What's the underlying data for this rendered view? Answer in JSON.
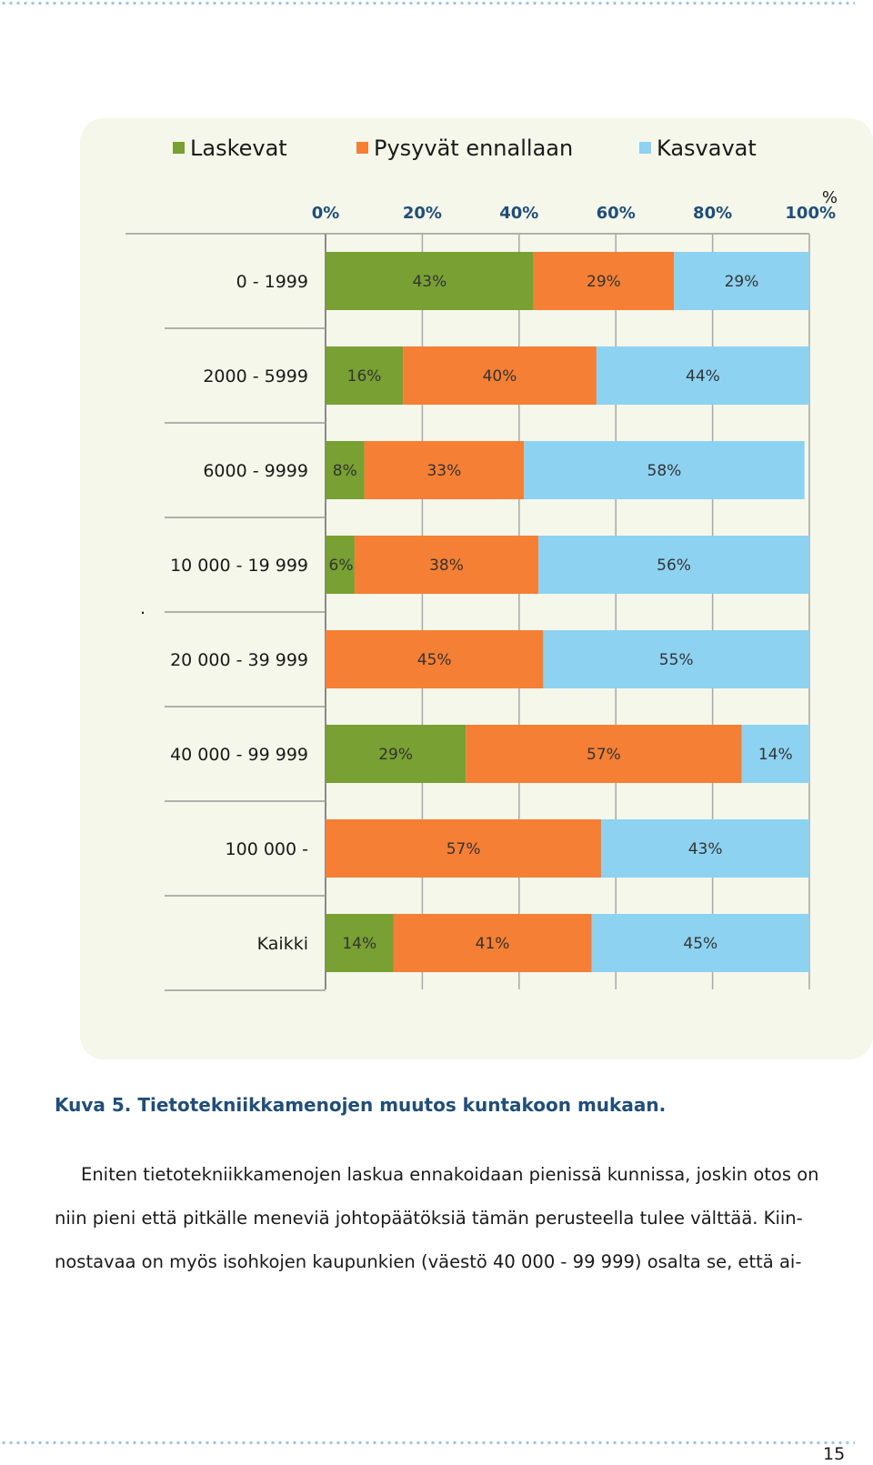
{
  "chart_data": {
    "type": "bar",
    "orientation": "horizontal",
    "stacked": true,
    "categories": [
      "0 - 1999",
      "2000 - 5999",
      "6000 - 9999",
      "10 000 - 19 999",
      "20 000 - 39 999",
      "40 000 - 99 999",
      "100 000 -",
      "Kaikki"
    ],
    "series": [
      {
        "name": "Laskevat",
        "color": "#78a032",
        "values": [
          43,
          16,
          8,
          6,
          0,
          29,
          0,
          14
        ],
        "labels": [
          "43%",
          "16%",
          "8%",
          "6%",
          "",
          "29%",
          "",
          "14%"
        ]
      },
      {
        "name": "Pysyvät ennallaan",
        "color": "#f57f34",
        "values": [
          29,
          40,
          33,
          38,
          45,
          57,
          57,
          41
        ],
        "labels": [
          "29%",
          "40%",
          "33%",
          "38%",
          "45%",
          "57%",
          "57%",
          "41%"
        ]
      },
      {
        "name": "Kasvavat",
        "color": "#8dd2f1",
        "values": [
          29,
          44,
          58,
          56,
          55,
          14,
          43,
          45
        ],
        "labels": [
          "29%",
          "44%",
          "58%",
          "56%",
          "55%",
          "14%",
          "43%",
          "45%"
        ]
      }
    ],
    "xlim": [
      0,
      100
    ],
    "x_ticks": [
      "0%",
      "20%",
      "40%",
      "60%",
      "80%",
      "100%"
    ],
    "x_unit": "%",
    "stray_mark": ".",
    "legend_position": "top",
    "grid": true
  },
  "caption": "Kuva 5. Tietotekniikkamenojen muutos kuntakoon mukaan.",
  "body_lines": [
    "Eniten tietotekniikkamenojen laskua ennakoidaan pienissä kunnissa, joskin otos on",
    "niin pieni että pitkälle meneviä johtopäätöksiä tämän perusteella tulee välttää. Kiin-",
    "nostavaa on myös isohkojen kaupunkien (väestö 40 000 - 99 999) osalta se, että ai-"
  ],
  "page_number": "15"
}
